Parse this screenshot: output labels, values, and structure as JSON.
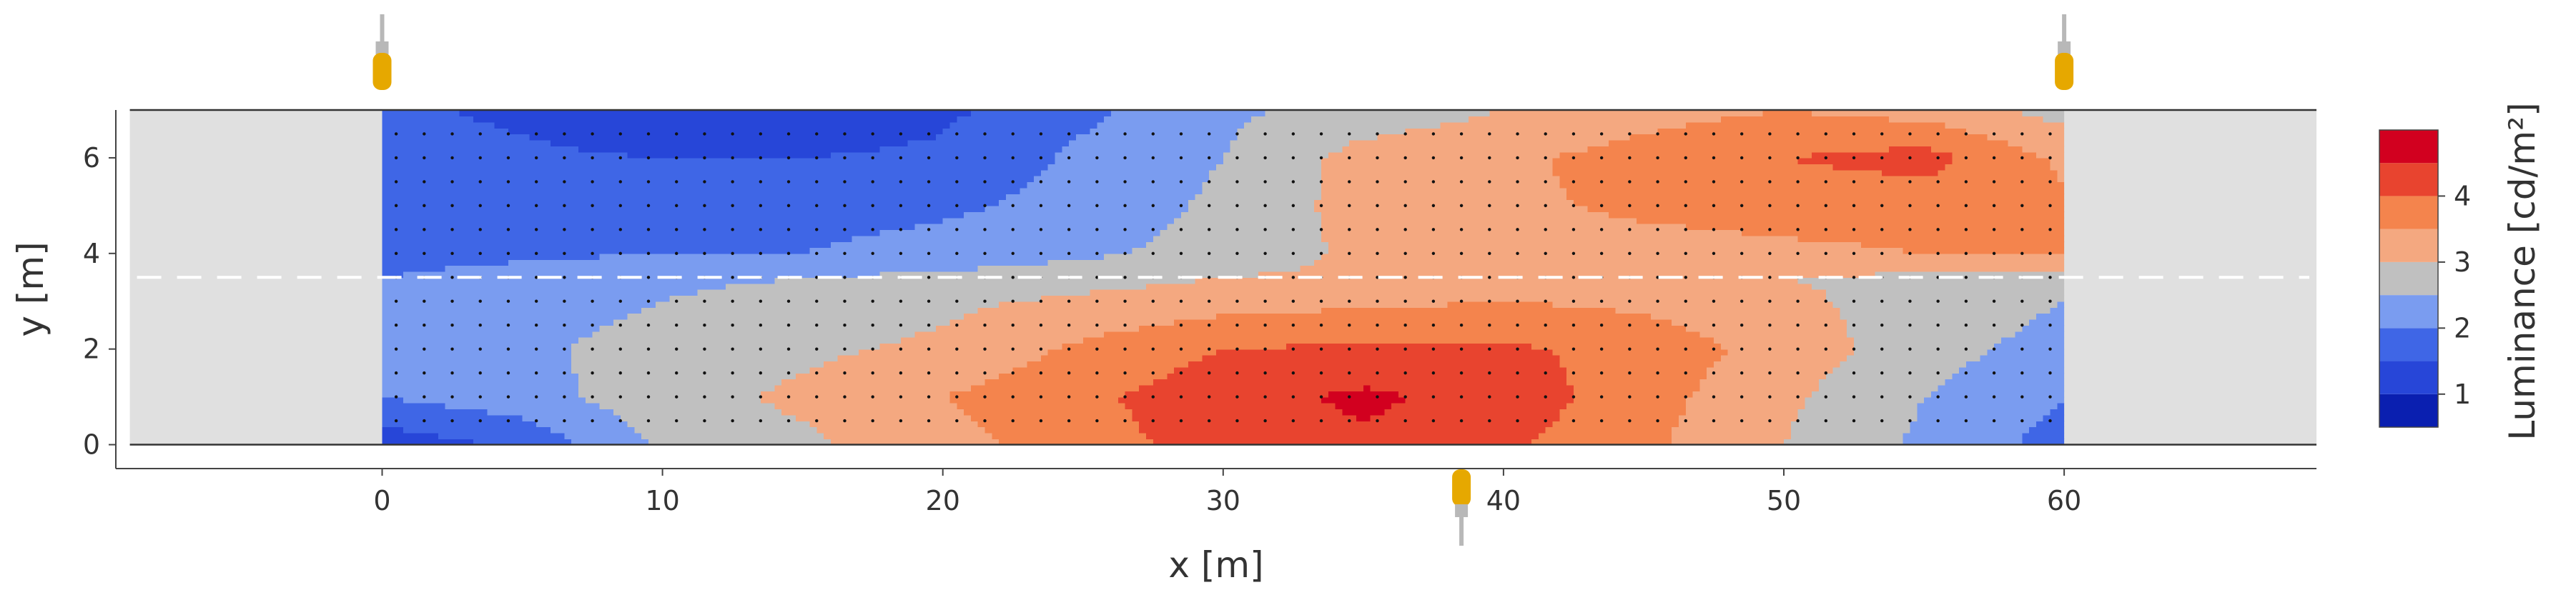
{
  "chart_data": {
    "type": "contour",
    "xlabel": "x [m]",
    "ylabel": "y [m]",
    "colorbar_title": "Luminance [cd/m²]",
    "x_ticks": [
      "0",
      "10",
      "20",
      "30",
      "40",
      "50",
      "60"
    ],
    "y_ticks": [
      "0",
      "2",
      "4",
      "6"
    ],
    "colorbar_ticks": [
      "1",
      "2",
      "3",
      "4"
    ],
    "xlim": [
      -9.5,
      69
    ],
    "ylim": [
      -0.5,
      7
    ],
    "road": {
      "x": [
        -9,
        69
      ],
      "y": [
        0,
        7
      ]
    },
    "measured_field": {
      "x": [
        0,
        60
      ],
      "y": [
        0,
        7
      ]
    },
    "lane_divider_y": 3.5,
    "grid_spacing": {
      "x": 1.0,
      "y": 0.5
    },
    "luminaires": [
      {
        "x": 0,
        "side": "top"
      },
      {
        "x": 60,
        "side": "top"
      },
      {
        "x": 38.5,
        "side": "bottom"
      }
    ],
    "levels": [
      0.5,
      1.0,
      1.5,
      2.0,
      2.5,
      3.0,
      3.5,
      4.0,
      4.5,
      5.0
    ],
    "level_colors": [
      "#0a1fb0",
      "#2746d8",
      "#3f66e6",
      "#7a9cf0",
      "#c0c0c0",
      "#f4a880",
      "#f4844d",
      "#e8442f",
      "#d2001f"
    ],
    "luminance_grid": {
      "x": [
        0,
        5,
        10,
        15,
        20,
        25,
        30,
        35,
        40,
        45,
        50,
        55,
        60
      ],
      "y": [
        0,
        1,
        2,
        3,
        3.5,
        4,
        5,
        6,
        7
      ],
      "values": [
        [
          1.2,
          1.6,
          2.6,
          2.9,
          3.3,
          3.8,
          4.2,
          4.4,
          4.1,
          3.6,
          3.0,
          2.4,
          1.8
        ],
        [
          2.0,
          2.3,
          2.8,
          3.1,
          3.5,
          3.9,
          4.3,
          4.6,
          4.3,
          3.7,
          3.1,
          2.5,
          2.0
        ],
        [
          2.1,
          2.4,
          2.7,
          2.9,
          3.1,
          3.6,
          4.0,
          4.1,
          4.1,
          3.8,
          3.3,
          2.7,
          2.3
        ],
        [
          2.1,
          2.3,
          2.5,
          2.7,
          2.9,
          3.1,
          3.3,
          3.4,
          3.5,
          3.4,
          3.1,
          2.8,
          2.5
        ],
        [
          2.0,
          2.2,
          2.4,
          2.5,
          2.6,
          2.8,
          3.0,
          3.1,
          3.2,
          3.2,
          3.0,
          2.9,
          2.8
        ],
        [
          1.8,
          1.9,
          2.0,
          2.0,
          2.2,
          2.4,
          2.7,
          3.1,
          3.2,
          3.3,
          3.4,
          3.5,
          3.5
        ],
        [
          1.8,
          1.8,
          1.7,
          1.8,
          1.9,
          2.2,
          2.6,
          3.2,
          3.4,
          3.6,
          3.7,
          3.7,
          3.6
        ],
        [
          1.7,
          1.6,
          1.5,
          1.5,
          1.6,
          2.1,
          2.5,
          3.2,
          3.4,
          3.7,
          4.0,
          4.2,
          3.4
        ],
        [
          1.6,
          1.4,
          1.0,
          1.1,
          1.4,
          1.9,
          2.4,
          2.7,
          3.0,
          3.3,
          3.5,
          3.3,
          2.8
        ]
      ]
    }
  }
}
